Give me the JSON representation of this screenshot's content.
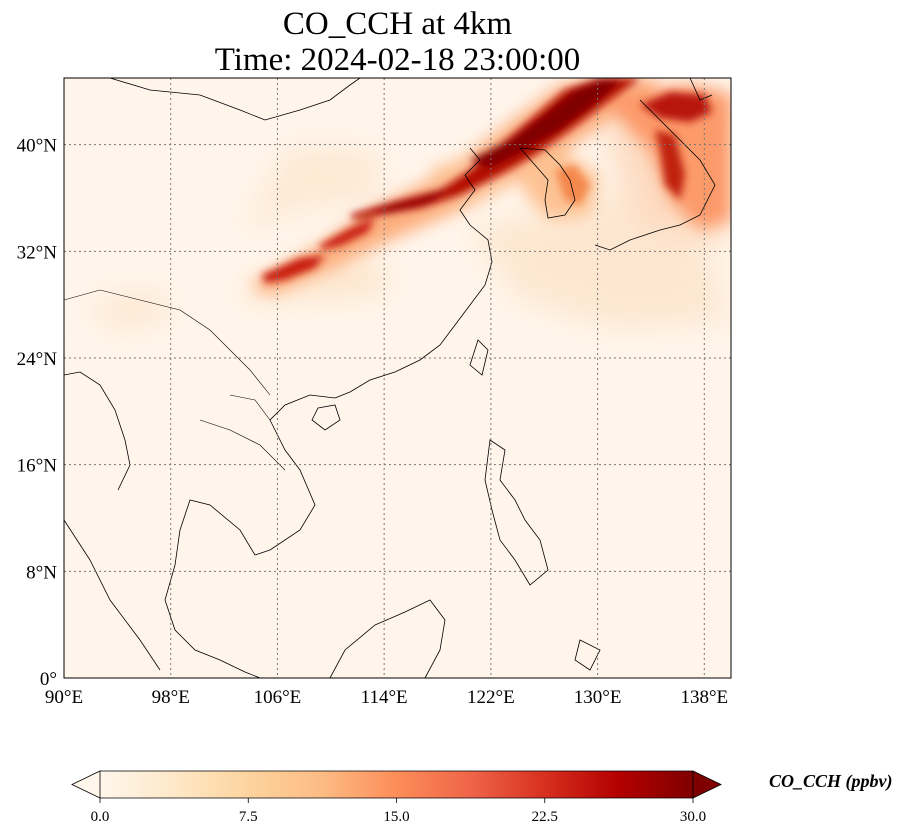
{
  "title": {
    "line1": "CO_CCH at 4km",
    "line2": "Time: 2024-02-18 23:00:00"
  },
  "map": {
    "variable": "CO_CCH",
    "level": "4km",
    "lon_range": [
      90,
      140
    ],
    "lat_range": [
      0,
      45
    ],
    "lon_ticks": [
      90,
      98,
      106,
      114,
      122,
      130,
      138
    ],
    "lon_tick_labels": [
      "90°E",
      "98°E",
      "106°E",
      "114°E",
      "122°E",
      "130°E",
      "138°E"
    ],
    "lat_ticks": [
      0,
      8,
      16,
      24,
      32,
      40
    ],
    "lat_tick_labels": [
      "0°",
      "8°N",
      "16°N",
      "24°N",
      "32°N",
      "40°N"
    ],
    "gridlines": "dotted",
    "background_color": "#fff5eb",
    "coastline_color": "#000000"
  },
  "colorbar": {
    "label": "CO_CCH (ppbv)",
    "colormap": "OrRd",
    "min": 0.0,
    "max": 30.0,
    "extend": "both",
    "ticks": [
      0.0,
      7.5,
      15.0,
      22.5,
      30.0
    ],
    "tick_labels": [
      "0.0",
      "7.5",
      "15.0",
      "22.5",
      "30.0"
    ],
    "colors": [
      "#fff7ec",
      "#fee8c8",
      "#fdd49e",
      "#fdbb84",
      "#fc8d59",
      "#ef6548",
      "#d7301f",
      "#b30000",
      "#7f0000"
    ]
  }
}
